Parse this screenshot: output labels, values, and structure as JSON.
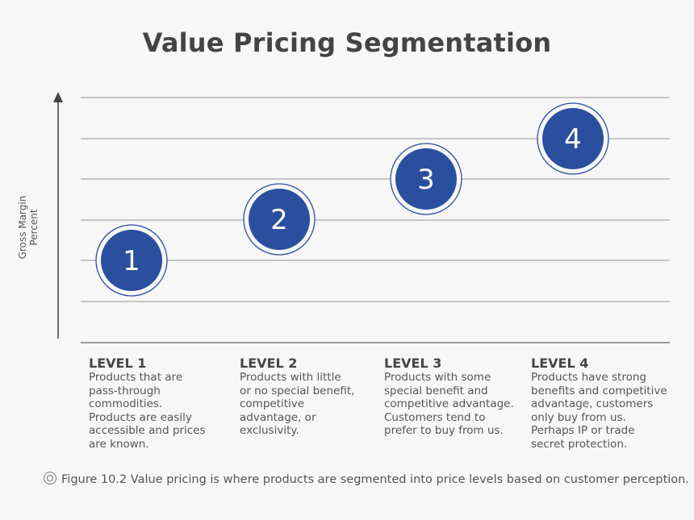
{
  "title": "Value Pricing Segmentation",
  "y_axis_label": "Gross Margin Percent",
  "colors": {
    "circle_fill": "#2a4f9e",
    "grid": "#999999",
    "text": "#555555"
  },
  "levels": [
    {
      "number": "1",
      "heading": "LEVEL 1",
      "description": "Products that are\npass-through\ncommodities.\nProducts are easily\naccessible and prices\nare known."
    },
    {
      "number": "2",
      "heading": "LEVEL 2",
      "description": "Products with little\nor no special benefit,\ncompetitive\nadvantage, or\nexclusivity."
    },
    {
      "number": "3",
      "heading": "LEVEL 3",
      "description": "Products with some\nspecial benefit and\ncompetitive advantage.\nCustomers tend to\nprefer to buy from us."
    },
    {
      "number": "4",
      "heading": "LEVEL 4",
      "description": "Products have strong\nbenefits and competitive\nadvantage, customers\nonly buy from us.\nPerhaps IP or trade\nsecret protection."
    }
  ],
  "caption": "Figure 10.2 Value pricing is where products are segmented into price levels based on customer perception.",
  "caption_icon": "concentric-circle-icon"
}
